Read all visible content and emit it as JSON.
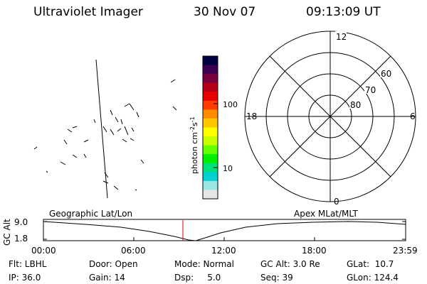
{
  "header": {
    "instrument": "Ultraviolet Imager",
    "date": "30 Nov 07",
    "time": "09:13:09 UT"
  },
  "colorbar": {
    "unit_main": "photon cm",
    "unit_sup1": "-2",
    "unit_mid": "s",
    "unit_sup2": "-1",
    "tick_labels": [
      "100",
      "10"
    ],
    "colors": [
      "#000040",
      "#3c0050",
      "#78003c",
      "#b40014",
      "#e60000",
      "#ff3c00",
      "#ff8c00",
      "#ffc800",
      "#ffff00",
      "#c8ff00",
      "#64ff00",
      "#00f000",
      "#00e07a",
      "#00d2d2",
      "#9ae6e6",
      "#e6e6e6"
    ]
  },
  "polar_plot": {
    "mlt_labels": {
      "top": "12",
      "left": "18",
      "right": "6",
      "bottom": "0"
    },
    "lat_labels": [
      "60",
      "70",
      "80"
    ]
  },
  "orbit_panel": {
    "left_label": "Geographic Lat/Lon",
    "right_label": "Apex MLat/MLT",
    "y_axis_title": "GC Alt",
    "y_ticks": [
      "9.0",
      "1.8"
    ],
    "x_ticks": [
      "00:00",
      "06:00",
      "12:00",
      "18:00",
      "23:59"
    ],
    "marker_color": "#e00000"
  },
  "status": {
    "flt": "Flt: LBHL",
    "ip": "IP: 36.0",
    "door": "Door: Open",
    "gain": "Gain: 14",
    "mode": "Mode: Normal",
    "dsp": "Dsp:     5.0",
    "gc_alt": "GC Alt: 3.0 Re",
    "seq": "Seq: 39",
    "glat": "GLat:  10.7",
    "glon": "GLon: 124.4"
  }
}
